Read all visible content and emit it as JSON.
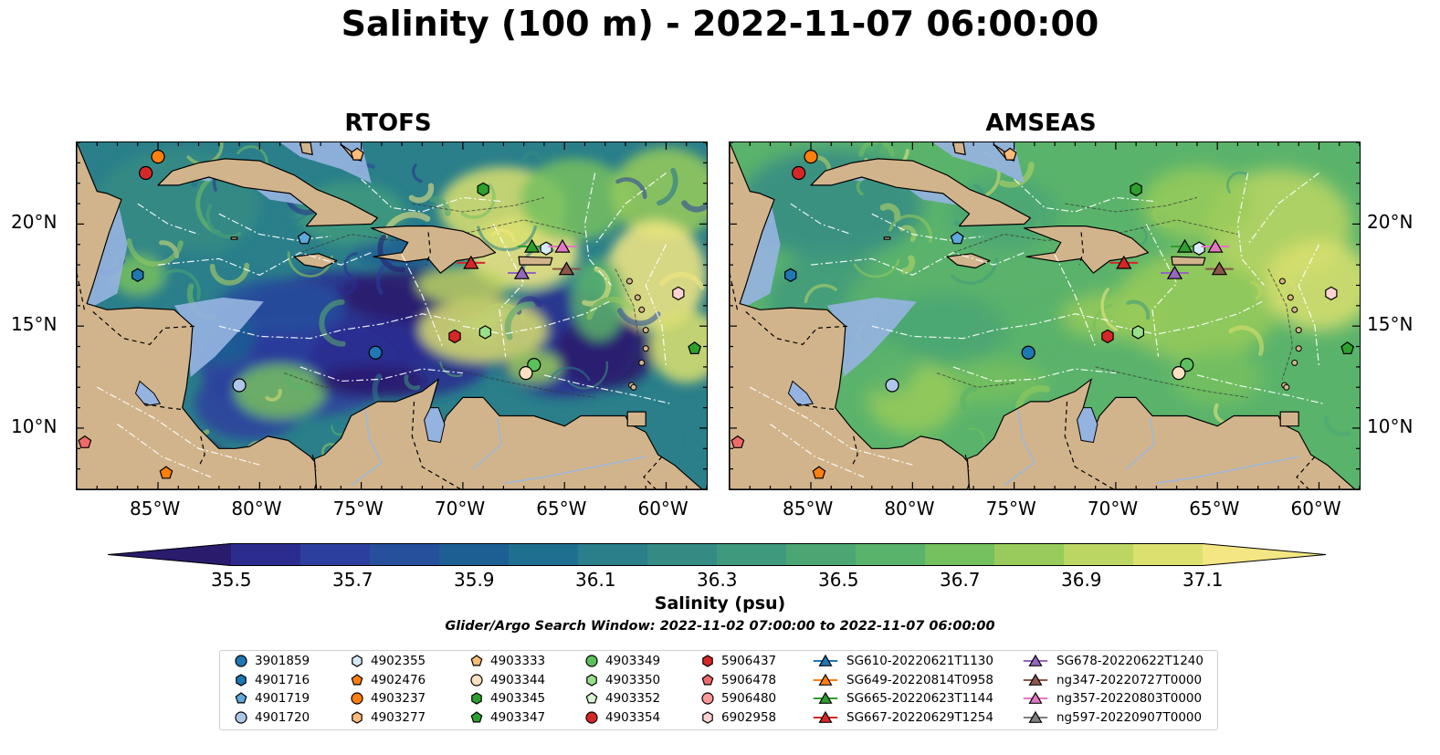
{
  "title": "Salinity (100 m) - 2022-11-07 06:00:00",
  "panels": [
    {
      "title": "RTOFS"
    },
    {
      "title": "AMSEAS"
    }
  ],
  "axis": {
    "lon_ticks": [
      "85°W",
      "80°W",
      "75°W",
      "70°W",
      "65°W",
      "60°W"
    ],
    "lat_ticks": [
      "20°N",
      "15°N",
      "10°N"
    ],
    "extent": {
      "lon_min": -89,
      "lon_max": -58,
      "lat_min": 7,
      "lat_max": 24
    }
  },
  "colorbar": {
    "label": "Salinity (psu)",
    "min": 35.5,
    "max": 37.1,
    "step": 0.1,
    "ticks": [
      "35.5",
      "35.7",
      "35.9",
      "36.1",
      "36.3",
      "36.5",
      "36.7",
      "36.9",
      "37.1"
    ],
    "colors": [
      "#2a1b6d",
      "#2c2c8f",
      "#2d3f9e",
      "#264f9c",
      "#1d5f93",
      "#1f6f90",
      "#2a7f8a",
      "#358b84",
      "#3f9a7d",
      "#4ba674",
      "#5ab36b",
      "#75c05f",
      "#98cb5b",
      "#bcd663",
      "#dbe06f",
      "#f4e783"
    ],
    "extend": "both"
  },
  "search_window": "Glider/Argo Search Window: 2022-11-02 07:00:00 to 2022-11-07 06:00:00",
  "legend": [
    {
      "label": "3901859",
      "marker": "circle",
      "color": "#1f77b4"
    },
    {
      "label": "4901716",
      "marker": "hexagon",
      "color": "#1f77b4"
    },
    {
      "label": "4901719",
      "marker": "pentagon",
      "color": "#5fa8dc"
    },
    {
      "label": "4901720",
      "marker": "circle",
      "color": "#aec7e8"
    },
    {
      "label": "4902355",
      "marker": "hexagon",
      "color": "#d6ebf7"
    },
    {
      "label": "4902476",
      "marker": "pentagon",
      "color": "#ff7f0e"
    },
    {
      "label": "4903237",
      "marker": "circle",
      "color": "#ff7f0e"
    },
    {
      "label": "4903277",
      "marker": "hexagon",
      "color": "#ffbb78"
    },
    {
      "label": "4903333",
      "marker": "pentagon",
      "color": "#ffbb78"
    },
    {
      "label": "4903344",
      "marker": "circle",
      "color": "#fde0c2"
    },
    {
      "label": "4903345",
      "marker": "hexagon",
      "color": "#2ca02c"
    },
    {
      "label": "4903347",
      "marker": "pentagon",
      "color": "#2ca02c"
    },
    {
      "label": "4903349",
      "marker": "circle",
      "color": "#5cc15c"
    },
    {
      "label": "4903350",
      "marker": "hexagon",
      "color": "#98df8a"
    },
    {
      "label": "4903352",
      "marker": "pentagon",
      "color": "#d7f5d0"
    },
    {
      "label": "4903354",
      "marker": "circle",
      "color": "#d62728"
    },
    {
      "label": "5906437",
      "marker": "hexagon",
      "color": "#d62728"
    },
    {
      "label": "5906478",
      "marker": "pentagon",
      "color": "#f06a6a"
    },
    {
      "label": "5906480",
      "marker": "circle",
      "color": "#ff9896"
    },
    {
      "label": "6902958",
      "marker": "hexagon",
      "color": "#ffd3d2"
    },
    {
      "label": "SG610-20220621T1130",
      "marker": "triangle-line",
      "color": "#1f77b4"
    },
    {
      "label": "SG649-20220814T0958",
      "marker": "triangle-line",
      "color": "#ff7f0e"
    },
    {
      "label": "SG665-20220623T1144",
      "marker": "triangle-line",
      "color": "#2ca02c"
    },
    {
      "label": "SG667-20220629T1254",
      "marker": "triangle-line",
      "color": "#d62728"
    },
    {
      "label": "SG678-20220622T1240",
      "marker": "triangle-line",
      "color": "#9467bd"
    },
    {
      "label": "ng347-20220727T0000",
      "marker": "triangle-line",
      "color": "#8c564b"
    },
    {
      "label": "ng357-20220803T0000",
      "marker": "triangle-line",
      "color": "#e377c2"
    },
    {
      "label": "ng597-20220907T0000",
      "marker": "triangle-line",
      "color": "#7f7f7f"
    }
  ],
  "platforms": [
    {
      "id": "4903237",
      "lon": -85.0,
      "lat": 23.3
    },
    {
      "id": "4903354",
      "lon": -85.6,
      "lat": 22.5
    },
    {
      "id": "4903333",
      "lon": -75.2,
      "lat": 23.4
    },
    {
      "id": "4903345",
      "lon": -69.0,
      "lat": 21.7
    },
    {
      "id": "4901719",
      "lon": -77.8,
      "lat": 19.3
    },
    {
      "id": "4901716",
      "lon": -86.0,
      "lat": 17.5
    },
    {
      "id": "SG665-20220623T1144",
      "lon": -66.6,
      "lat": 18.9
    },
    {
      "id": "4902355",
      "lon": -65.9,
      "lat": 18.8
    },
    {
      "id": "ng357-20220803T0000",
      "lon": -65.1,
      "lat": 18.9
    },
    {
      "id": "SG667-20220629T1254",
      "lon": -69.6,
      "lat": 18.1
    },
    {
      "id": "SG678-20220622T1240",
      "lon": -67.1,
      "lat": 17.6
    },
    {
      "id": "ng347-20220727T0000",
      "lon": -64.9,
      "lat": 17.8
    },
    {
      "id": "6902958",
      "lon": -59.4,
      "lat": 16.6
    },
    {
      "id": "4903350",
      "lon": -68.9,
      "lat": 14.7
    },
    {
      "id": "5906437",
      "lon": -70.4,
      "lat": 14.5
    },
    {
      "id": "4903347",
      "lon": -58.6,
      "lat": 13.9
    },
    {
      "id": "3901859",
      "lon": -74.3,
      "lat": 13.7
    },
    {
      "id": "4903349",
      "lon": -66.5,
      "lat": 13.1
    },
    {
      "id": "4903344",
      "lon": -66.9,
      "lat": 12.7
    },
    {
      "id": "4901720",
      "lon": -81.0,
      "lat": 12.1
    },
    {
      "id": "5906478",
      "lon": -88.6,
      "lat": 9.3
    },
    {
      "id": "4902476",
      "lon": -84.6,
      "lat": 7.8
    }
  ]
}
